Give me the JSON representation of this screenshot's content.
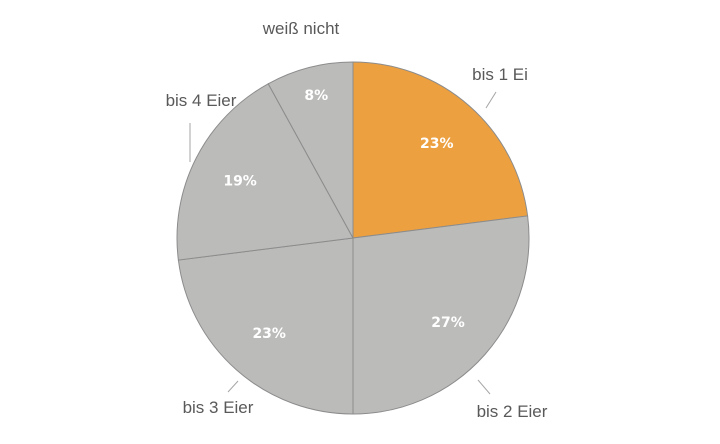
{
  "chart_data": {
    "type": "pie",
    "title": "",
    "categories": [
      "bis 1 Ei",
      "bis 2 Eier",
      "bis 3 Eier",
      "bis 4 Eier",
      "weiß nicht"
    ],
    "values": [
      23,
      27,
      23,
      19,
      8
    ],
    "value_labels": [
      "23%",
      "27%",
      "23%",
      "19%",
      "8%"
    ],
    "colors": [
      "#EDA040",
      "#BBBCBA",
      "#BBBCBA",
      "#BBBCBA",
      "#BBBCBA"
    ],
    "slice_border_color": "#8C8C8C",
    "start_angle": "12 o'clock, clockwise",
    "legend": "none (category labels placed outside slices)"
  }
}
